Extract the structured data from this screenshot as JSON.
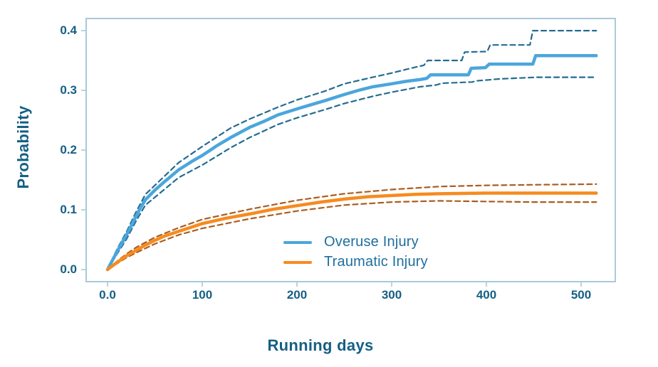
{
  "figure": {
    "background": "#ffffff"
  },
  "chart_data": {
    "type": "line",
    "title": "",
    "xlabel": "Running days",
    "ylabel": "Probability",
    "xlim": [
      -22.56,
      536.09
    ],
    "ylim": [
      -0.0202,
      0.4203
    ],
    "grid": false,
    "frame": true,
    "legend_position": "inside-bottom-center",
    "x_ticks": {
      "values": [
        0,
        100,
        200,
        300,
        400,
        500
      ],
      "labels": [
        "0.0",
        "100",
        "200",
        "300",
        "400",
        "500"
      ]
    },
    "y_ticks": {
      "values": [
        0,
        0.1,
        0.2,
        0.3,
        0.4
      ],
      "labels": [
        "0.0",
        "0.1",
        "0.2",
        "0.3",
        "0.4"
      ]
    },
    "colors": {
      "frame": "#aac9da",
      "axis_text": "#155f84",
      "legend_text": "#1e6f9e"
    },
    "series": [
      {
        "name": "Overuse Injury",
        "color": "#4ba6dc",
        "ci_color": "#256c91",
        "style": "solid-with-dashed-ci",
        "x": [
          0,
          5,
          10,
          15,
          20,
          25,
          30,
          35,
          40,
          50,
          60,
          75,
          90,
          100,
          115,
          130,
          150,
          165,
          180,
          200,
          215,
          230,
          250,
          265,
          280,
          300,
          315,
          330,
          337,
          341,
          381,
          384,
          399,
          403,
          449,
          452,
          516
        ],
        "y": [
          0,
          0.015,
          0.03,
          0.044,
          0.058,
          0.073,
          0.089,
          0.104,
          0.117,
          0.133,
          0.147,
          0.167,
          0.182,
          0.191,
          0.207,
          0.221,
          0.238,
          0.248,
          0.259,
          0.269,
          0.276,
          0.283,
          0.293,
          0.3,
          0.306,
          0.311,
          0.315,
          0.318,
          0.32,
          0.326,
          0.326,
          0.337,
          0.338,
          0.344,
          0.344,
          0.358,
          0.358
        ],
        "ci_upper_x": [
          0,
          10,
          20,
          30,
          40,
          50,
          75,
          100,
          130,
          150,
          180,
          200,
          230,
          250,
          280,
          300,
          320,
          334,
          338,
          374,
          377,
          401,
          404,
          446,
          449,
          516
        ],
        "ci_upper_y": [
          0,
          0.034,
          0.063,
          0.096,
          0.126,
          0.141,
          0.179,
          0.206,
          0.237,
          0.252,
          0.272,
          0.284,
          0.299,
          0.311,
          0.322,
          0.329,
          0.337,
          0.342,
          0.35,
          0.35,
          0.364,
          0.365,
          0.376,
          0.376,
          0.4,
          0.4
        ],
        "ci_lower_x": [
          0,
          10,
          20,
          30,
          40,
          50,
          75,
          100,
          130,
          150,
          180,
          200,
          230,
          250,
          280,
          300,
          330,
          347,
          353,
          385,
          390,
          406,
          412,
          453,
          459,
          516
        ],
        "ci_lower_y": [
          0,
          0.026,
          0.051,
          0.081,
          0.108,
          0.121,
          0.154,
          0.175,
          0.204,
          0.221,
          0.243,
          0.254,
          0.268,
          0.278,
          0.29,
          0.297,
          0.306,
          0.309,
          0.312,
          0.314,
          0.316,
          0.318,
          0.319,
          0.322,
          0.322,
          0.322
        ]
      },
      {
        "name": "Traumatic Injury",
        "color": "#f68b1f",
        "ci_color": "#aa5d20",
        "style": "solid-with-dashed-ci",
        "x": [
          0,
          10,
          20,
          30,
          40,
          50,
          60,
          75,
          100,
          125,
          150,
          175,
          200,
          225,
          250,
          275,
          300,
          325,
          350,
          400,
          450,
          516
        ],
        "y": [
          0,
          0.012,
          0.023,
          0.032,
          0.041,
          0.049,
          0.056,
          0.064,
          0.077,
          0.086,
          0.093,
          0.101,
          0.107,
          0.113,
          0.118,
          0.122,
          0.124,
          0.126,
          0.127,
          0.128,
          0.128,
          0.128
        ],
        "ci_upper_x": [
          0,
          10,
          20,
          30,
          50,
          75,
          100,
          150,
          200,
          250,
          300,
          350,
          400,
          450,
          516
        ],
        "ci_upper_y": [
          0,
          0.014,
          0.026,
          0.037,
          0.054,
          0.07,
          0.084,
          0.101,
          0.116,
          0.127,
          0.134,
          0.139,
          0.141,
          0.142,
          0.143
        ],
        "ci_lower_x": [
          0,
          10,
          20,
          30,
          50,
          75,
          100,
          150,
          200,
          250,
          300,
          350,
          400,
          450,
          516
        ],
        "ci_lower_y": [
          0,
          0.01,
          0.02,
          0.028,
          0.043,
          0.058,
          0.069,
          0.085,
          0.098,
          0.108,
          0.113,
          0.115,
          0.114,
          0.113,
          0.113
        ]
      }
    ]
  }
}
